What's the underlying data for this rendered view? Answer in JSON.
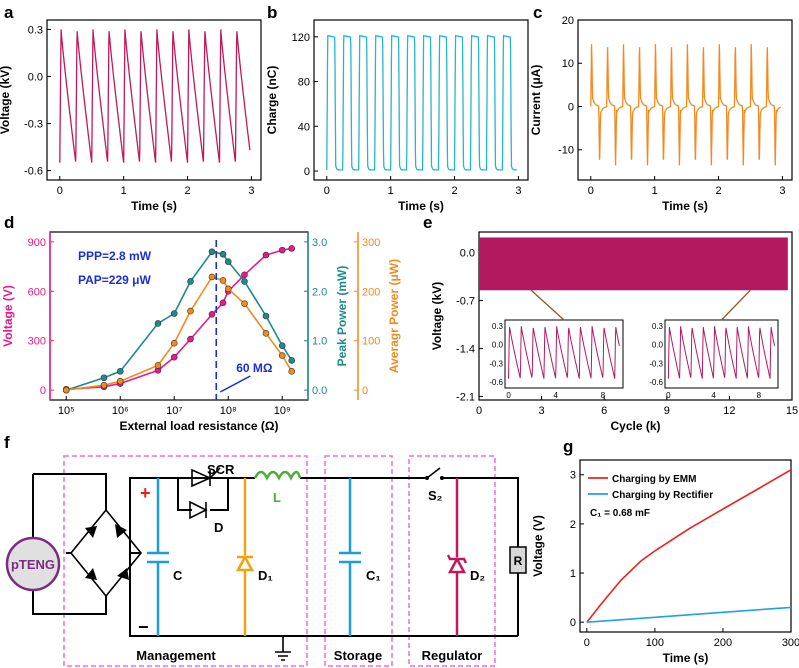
{
  "panel_labels": {
    "a": "a",
    "b": "b",
    "c": "c",
    "d": "d",
    "e": "e",
    "f": "f",
    "g": "g"
  },
  "chart_data": [
    {
      "panel": "a",
      "type": "line",
      "xlabel": "Time (s)",
      "ylabel": "Voltage (kV)",
      "xlim": [
        -0.2,
        3.15
      ],
      "ylim": [
        -0.66,
        0.36
      ],
      "xticks": [
        "0",
        "1",
        "2",
        "3"
      ],
      "yticks": [
        "0.3",
        "0.0",
        "-0.3",
        "-0.6"
      ],
      "series": [
        {
          "name": "voltage",
          "color": "#c2185b",
          "period_s": 0.25,
          "peak_value": 0.3,
          "trough_value": -0.55
        }
      ]
    },
    {
      "panel": "b",
      "type": "line",
      "xlabel": "Time (s)",
      "ylabel": "Charge (nC)",
      "xlim": [
        -0.2,
        3.15
      ],
      "ylim": [
        -8,
        135
      ],
      "xticks": [
        "0",
        "1",
        "2",
        "3"
      ],
      "yticks": [
        "120",
        "80",
        "40",
        "0"
      ],
      "series": [
        {
          "name": "charge",
          "color": "#26b6c6",
          "period_s": 0.25,
          "peak_value": 121,
          "trough_value": 1
        }
      ]
    },
    {
      "panel": "c",
      "type": "line",
      "xlabel": "Time (s)",
      "ylabel": "Current (μA)",
      "xlim": [
        -0.2,
        3.15
      ],
      "ylim": [
        -17,
        20
      ],
      "xticks": [
        "0",
        "1",
        "2",
        "3"
      ],
      "yticks": [
        "20",
        "10",
        "0",
        "-10"
      ],
      "series": [
        {
          "name": "current",
          "color": "#f28a1e",
          "period_s": 0.25,
          "peak_value": 15,
          "trough_value": -14
        }
      ]
    },
    {
      "panel": "d",
      "type": "scatter",
      "xlabel": "External load resistance (Ω)",
      "xscale": "log",
      "xlim": [
        50000,
        3000000000
      ],
      "xticks": [
        "10⁵",
        "10⁶",
        "10⁷",
        "10⁸",
        "10⁹"
      ],
      "axes": [
        {
          "label": "Voltage (V)",
          "color": "#e8198b",
          "ylim": [
            -60,
            960
          ],
          "ticks": [
            "900",
            "600",
            "300",
            "0"
          ]
        },
        {
          "label": "Peak Power (mW)",
          "color": "#1f8a8a",
          "ylim": [
            -0.2,
            3.2
          ],
          "ticks": [
            "3.0",
            "2.0",
            "1.0",
            "0.0"
          ]
        },
        {
          "label": "Averagr Power (μW)",
          "color": "#f28a1e",
          "ylim": [
            -20,
            320
          ],
          "ticks": [
            "300",
            "200",
            "100",
            "0"
          ]
        }
      ],
      "annotations": {
        "ppp": "PPP=2.8 mW",
        "pap": "PAP=229 μW",
        "optimal": "60 MΩ",
        "optimal_x": 60000000
      },
      "series": [
        {
          "name": "Voltage",
          "color": "#e8198b",
          "x": [
            100000,
            500000,
            1000000,
            5000000,
            10000000,
            20000000,
            50000000,
            80000000,
            100000000,
            200000000,
            500000000,
            1000000000,
            1500000000
          ],
          "y": [
            5,
            20,
            40,
            120,
            200,
            310,
            460,
            530,
            600,
            700,
            820,
            850,
            860
          ]
        },
        {
          "name": "Peak Power",
          "color": "#1f8a8a",
          "x": [
            100000,
            500000,
            1000000,
            5000000,
            10000000,
            20000000,
            50000000,
            80000000,
            100000000,
            200000000,
            500000000,
            1000000000,
            1500000000
          ],
          "y": [
            0.0,
            0.25,
            0.38,
            1.35,
            1.55,
            2.2,
            2.8,
            2.75,
            2.6,
            2.2,
            1.5,
            0.9,
            0.6
          ]
        },
        {
          "name": "Averagr Power",
          "color": "#f28a1e",
          "x": [
            100000,
            500000,
            1000000,
            5000000,
            10000000,
            20000000,
            50000000,
            80000000,
            100000000,
            200000000,
            500000000,
            1000000000,
            1500000000
          ],
          "y": [
            0,
            10,
            18,
            50,
            95,
            160,
            229,
            222,
            205,
            175,
            115,
            70,
            38
          ]
        }
      ]
    },
    {
      "panel": "e",
      "type": "line",
      "xlabel": "Cycle (k)",
      "ylabel": "Voltage (kV)",
      "xlim": [
        0,
        15
      ],
      "ylim": [
        -2.15,
        0.3
      ],
      "xticks": [
        "0",
        "3",
        "6",
        "9",
        "12",
        "15"
      ],
      "yticks": [
        "0.0",
        "-0.7",
        "-1.4",
        "-2.1"
      ],
      "band": {
        "top": 0.22,
        "bottom": -0.55,
        "color": "#b2195f"
      },
      "insets": [
        {
          "xticks": [
            "0",
            "4",
            "8"
          ],
          "yticks": [
            "0.3",
            "0.0",
            "-0.3",
            "-0.6"
          ]
        },
        {
          "xticks": [
            "0",
            "4",
            "8"
          ],
          "yticks": [
            "0.3",
            "0.0",
            "-0.3",
            "-0.6"
          ]
        }
      ]
    },
    {
      "panel": "g",
      "type": "line",
      "xlabel": "Time (s)",
      "ylabel": "Voltage (V)",
      "xlim": [
        -10,
        300
      ],
      "ylim": [
        -0.2,
        3.3
      ],
      "xticks": [
        "0",
        "100",
        "200",
        "300"
      ],
      "yticks": [
        "3",
        "2",
        "1",
        "0"
      ],
      "note": "C₁ = 0.68 mF",
      "series": [
        {
          "name": "Charging by EMM",
          "color": "#e8231f",
          "x": [
            0,
            20,
            50,
            80,
            100,
            150,
            200,
            250,
            300
          ],
          "y": [
            0,
            0.35,
            0.85,
            1.25,
            1.45,
            1.9,
            2.3,
            2.7,
            3.1
          ]
        },
        {
          "name": "Charging by Rectifier",
          "color": "#1fa3e0",
          "x": [
            0,
            100,
            200,
            300
          ],
          "y": [
            0,
            0.1,
            0.2,
            0.3
          ]
        }
      ]
    }
  ],
  "circuit": {
    "source": "pTENG",
    "labels": {
      "plus": "+",
      "minus": "−",
      "c": "C",
      "scr": "SCR",
      "d": "D",
      "l": "L",
      "d1": "D₁",
      "c1": "C₁",
      "s2": "S₂",
      "d2": "D₂",
      "r": "R"
    },
    "sections": [
      "Management",
      "Storage",
      "Regulator"
    ]
  }
}
